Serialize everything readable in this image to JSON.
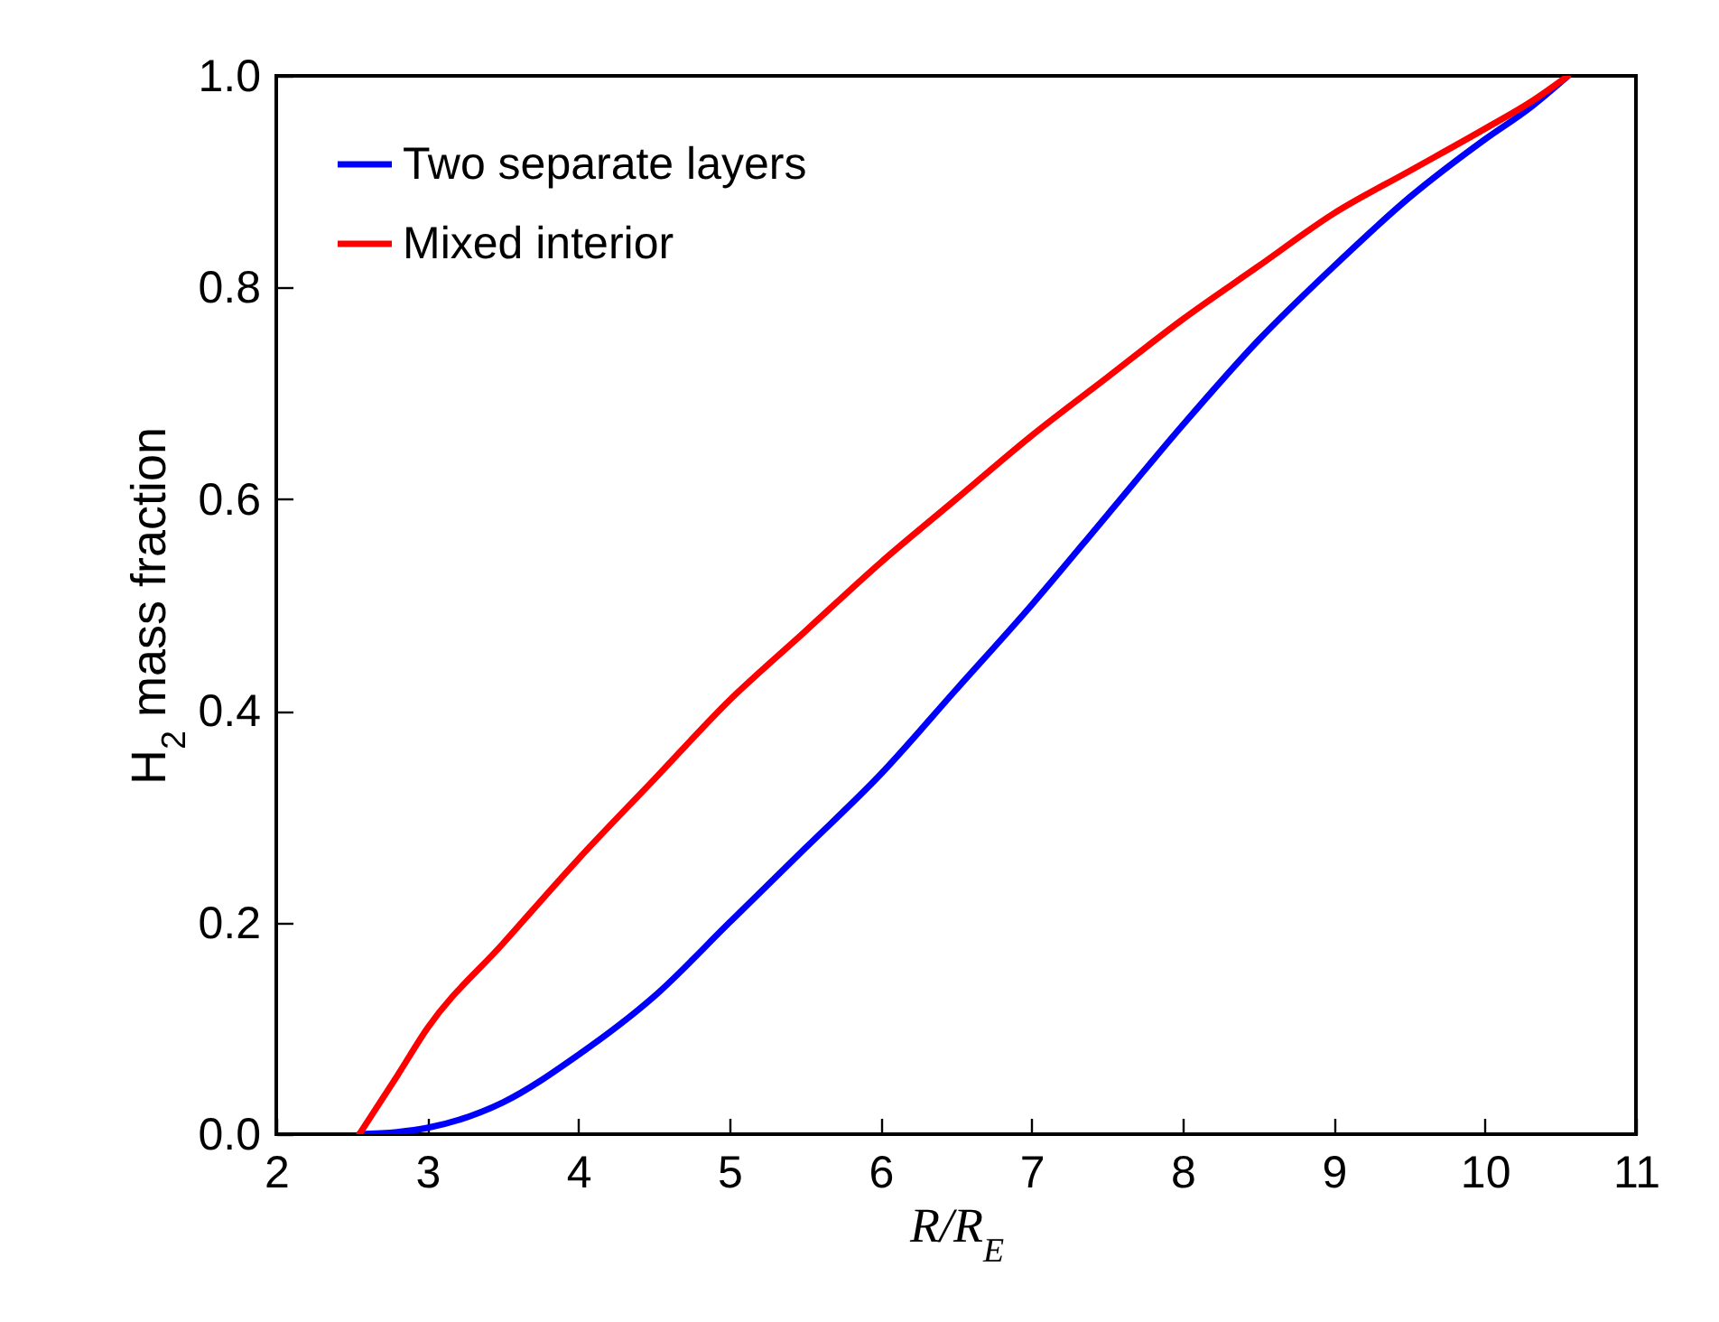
{
  "chart_data": {
    "type": "line",
    "xlabel": "R/R$_{E}$",
    "ylabel": "H$_{2}$ mass fraction",
    "xlim": [
      2,
      11
    ],
    "ylim": [
      0,
      1
    ],
    "xticks": [
      2,
      3,
      4,
      5,
      6,
      7,
      8,
      9,
      10,
      11
    ],
    "yticks": [
      {
        "value": 0,
        "label": "0.0"
      },
      0.2,
      0.4,
      0.6,
      0.8,
      {
        "value": 1,
        "label": "1.0"
      }
    ],
    "grid": false,
    "legend": "top left",
    "line_style": "solid",
    "marker": "none",
    "series": [
      {
        "name": "Two separate layers",
        "color": "#0000ff",
        "x": [
          2.55,
          2.8,
          3,
          3.5,
          4,
          4.5,
          5,
          5.5,
          6,
          6.5,
          7,
          7.5,
          8,
          8.5,
          9,
          9.5,
          10,
          10.3,
          10.55
        ],
        "values": [
          0,
          0.002,
          0.006,
          0.03,
          0.075,
          0.13,
          0.2,
          0.27,
          0.34,
          0.42,
          0.5,
          0.585,
          0.67,
          0.75,
          0.82,
          0.885,
          0.94,
          0.97,
          1.0
        ]
      },
      {
        "name": "Mixed interior",
        "color": "#ff0000",
        "x": [
          2.55,
          2.8,
          3,
          3.5,
          4,
          4.5,
          5,
          5.5,
          6,
          6.5,
          7,
          7.5,
          8,
          8.5,
          9,
          9.5,
          10,
          10.3,
          10.55
        ],
        "values": [
          0,
          0.055,
          0.1,
          0.18,
          0.26,
          0.335,
          0.41,
          0.475,
          0.54,
          0.6,
          0.66,
          0.715,
          0.77,
          0.82,
          0.87,
          0.91,
          0.95,
          0.975,
          1.0
        ]
      }
    ]
  }
}
